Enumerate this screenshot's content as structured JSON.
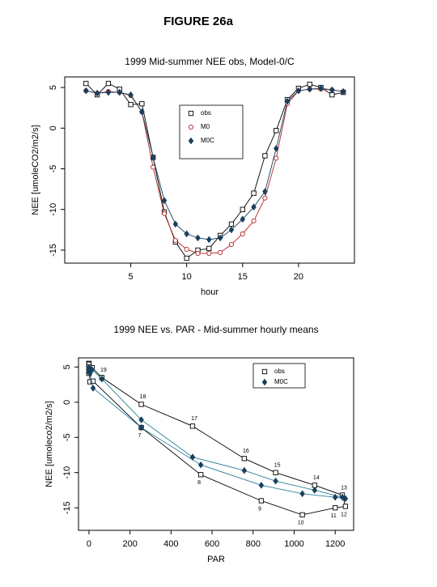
{
  "figure_title": "FIGURE 26a",
  "chart_data": [
    {
      "type": "line",
      "title": "1999 Mid-summer NEE obs, Model-0/C",
      "x_label": "hour",
      "y_label": "NEE [umoleCO2/m2/s]",
      "x": [
        1,
        2,
        3,
        4,
        5,
        6,
        7,
        8,
        9,
        10,
        11,
        12,
        13,
        14,
        15,
        16,
        17,
        18,
        19,
        20,
        21,
        22,
        23,
        24
      ],
      "xlim": [
        -0.9,
        25
      ],
      "ylim": [
        -16.6,
        6.3
      ],
      "xticks": [
        5,
        10,
        15,
        20
      ],
      "yticks": [
        5,
        0,
        -5,
        -10,
        -15
      ],
      "legend": "upper center",
      "series": [
        {
          "name": "obs",
          "color": "#000000",
          "marker": "square",
          "values": [
            5.5,
            4.1,
            5.5,
            4.8,
            2.9,
            3.0,
            -3.6,
            -10.3,
            -14.0,
            -16.0,
            -15.0,
            -14.8,
            -13.2,
            -11.8,
            -10.0,
            -8.0,
            -3.4,
            -0.3,
            3.5,
            4.9,
            5.4,
            5.0,
            4.1,
            4.4
          ]
        },
        {
          "name": "M0",
          "color": "#b22222",
          "marker": "circle",
          "values": [
            4.6,
            4.3,
            4.5,
            4.4,
            4.0,
            2.0,
            -4.8,
            -10.5,
            -13.8,
            -14.9,
            -15.4,
            -15.4,
            -15.3,
            -14.3,
            -13.0,
            -11.4,
            -8.6,
            -3.7,
            3.0,
            4.6,
            4.8,
            4.8,
            4.7,
            4.5
          ]
        },
        {
          "name": "M0C",
          "color": "#17405e",
          "marker": "diamond",
          "values": [
            4.6,
            4.3,
            4.4,
            4.4,
            4.1,
            2.0,
            -3.6,
            -8.9,
            -11.8,
            -13.0,
            -13.5,
            -13.7,
            -13.5,
            -12.5,
            -11.2,
            -9.7,
            -7.8,
            -2.5,
            3.3,
            4.6,
            4.8,
            4.9,
            4.7,
            4.5
          ]
        }
      ]
    },
    {
      "type": "line",
      "title": "1999 NEE vs. PAR - Mid-summer hourly means",
      "x_label": "PAR",
      "y_label": "NEE [umoleco2/m2/s]",
      "x": [
        0,
        0,
        0,
        0,
        5,
        20,
        255,
        545,
        840,
        1040,
        1200,
        1250,
        1235,
        1100,
        910,
        757,
        505,
        255,
        63,
        15,
        0,
        0,
        0,
        0
      ],
      "xlim": [
        -51,
        1290
      ],
      "ylim": [
        -18.2,
        6.3
      ],
      "xticks": [
        0,
        200,
        400,
        600,
        800,
        1000,
        1200
      ],
      "yticks": [
        5,
        0,
        -5,
        -10,
        -15
      ],
      "legend": "upper right",
      "series": [
        {
          "name": "obs",
          "color": "#000000",
          "marker": "square",
          "values": [
            5.5,
            4.1,
            5.5,
            4.8,
            2.9,
            3.0,
            -3.6,
            -10.3,
            -14.0,
            -16.0,
            -15.0,
            -14.8,
            -13.2,
            -11.8,
            -10.0,
            -8.0,
            -3.4,
            -0.3,
            3.5,
            4.9,
            5.4,
            5.0,
            4.1,
            4.4
          ],
          "point_labels": [
            null,
            null,
            null,
            null,
            null,
            null,
            "7",
            "8",
            "9",
            "10",
            "11",
            "12",
            "13",
            "14",
            "15",
            "16",
            "17",
            "18",
            "19",
            null,
            null,
            null,
            null,
            null
          ]
        },
        {
          "name": "M0C",
          "color": "#17405e",
          "line_color": "#2a7f9a",
          "marker": "diamond",
          "values": [
            4.6,
            4.3,
            4.4,
            4.4,
            4.1,
            2.0,
            -3.6,
            -8.9,
            -11.8,
            -13.0,
            -13.5,
            -13.7,
            -13.5,
            -12.5,
            -11.2,
            -9.7,
            -7.8,
            -2.5,
            3.3,
            4.6,
            4.8,
            4.9,
            4.7,
            4.5
          ]
        }
      ]
    }
  ]
}
